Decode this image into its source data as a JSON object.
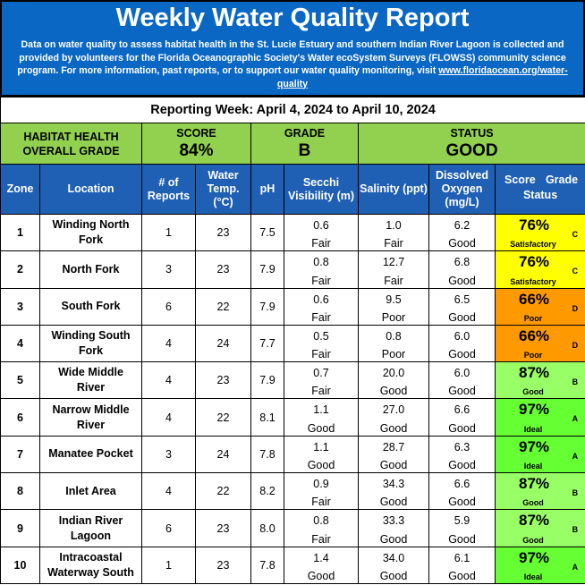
{
  "header": {
    "title": "Weekly Water Quality Report",
    "description": "Data on water quality to assess habitat health in the St. Lucie Estuary and southern Indian River Lagoon is collected and provided by volunteers for the Florida Oceanographic Society's Water ecoSystem Surveys (FLOWSS) community science program.  For more information, past reports, or to support our water quality monitoring, visit",
    "link": "www.floridaocean.org/water-quality",
    "bg_color": "#0a67c4"
  },
  "week": "Reporting Week: April 4, 2024 to April 10, 2024",
  "overall": {
    "label_line1": "HABITAT HEALTH",
    "label_line2": "OVERALL GRADE",
    "score_label": "SCORE",
    "score": "84%",
    "grade_label": "GRADE",
    "grade": "B",
    "status_label": "STATUS",
    "status": "GOOD",
    "bg_color": "#92d050"
  },
  "columns": {
    "zone": "Zone",
    "location": "Location",
    "reports": "# of Reports",
    "temp": "Water Temp. (°C)",
    "ph": "pH",
    "secchi": "Secchi Visibility (m)",
    "salinity": "Salinity (ppt)",
    "oxygen": "Dissolved Oxygen (mg/L)",
    "score": "Score",
    "grade": "Grade",
    "status": "Status",
    "header_color": "#1f5fb4"
  },
  "status_colors": {
    "Satisfactory": "#ffff00",
    "Poor": "#ff9900",
    "Good": "#99ff66",
    "Ideal": "#66ff33"
  },
  "rows": [
    {
      "zone": "1",
      "location": "Winding North Fork",
      "reports": "1",
      "temp": "23",
      "ph": "7.5",
      "secchi": "0.6",
      "secchi_rating": "Fair",
      "salinity": "1.0",
      "salinity_rating": "Fair",
      "oxygen": "6.2",
      "oxygen_rating": "Good",
      "score": "76%",
      "grade": "C",
      "status": "Satisfactory"
    },
    {
      "zone": "2",
      "location": "North Fork",
      "reports": "3",
      "temp": "23",
      "ph": "7.9",
      "secchi": "0.8",
      "secchi_rating": "Fair",
      "salinity": "12.7",
      "salinity_rating": "Fair",
      "oxygen": "6.8",
      "oxygen_rating": "Good",
      "score": "76%",
      "grade": "C",
      "status": "Satisfactory"
    },
    {
      "zone": "3",
      "location": "South Fork",
      "reports": "6",
      "temp": "22",
      "ph": "7.9",
      "secchi": "0.6",
      "secchi_rating": "Fair",
      "salinity": "9.5",
      "salinity_rating": "Poor",
      "oxygen": "6.5",
      "oxygen_rating": "Good",
      "score": "66%",
      "grade": "D",
      "status": "Poor"
    },
    {
      "zone": "4",
      "location": "Winding South Fork",
      "reports": "4",
      "temp": "24",
      "ph": "7.7",
      "secchi": "0.5",
      "secchi_rating": "Fair",
      "salinity": "0.8",
      "salinity_rating": "Poor",
      "oxygen": "6.0",
      "oxygen_rating": "Good",
      "score": "66%",
      "grade": "D",
      "status": "Poor"
    },
    {
      "zone": "5",
      "location": "Wide Middle River",
      "reports": "4",
      "temp": "23",
      "ph": "7.9",
      "secchi": "0.7",
      "secchi_rating": "Fair",
      "salinity": "20.0",
      "salinity_rating": "Good",
      "oxygen": "6.0",
      "oxygen_rating": "Good",
      "score": "87%",
      "grade": "B",
      "status": "Good"
    },
    {
      "zone": "6",
      "location": "Narrow Middle River",
      "reports": "4",
      "temp": "22",
      "ph": "8.1",
      "secchi": "1.1",
      "secchi_rating": "Good",
      "salinity": "27.0",
      "salinity_rating": "Good",
      "oxygen": "6.6",
      "oxygen_rating": "Good",
      "score": "97%",
      "grade": "A",
      "status": "Ideal"
    },
    {
      "zone": "7",
      "location": "Manatee Pocket",
      "reports": "3",
      "temp": "24",
      "ph": "7.8",
      "secchi": "1.1",
      "secchi_rating": "Good",
      "salinity": "28.7",
      "salinity_rating": "Good",
      "oxygen": "6.3",
      "oxygen_rating": "Good",
      "score": "97%",
      "grade": "A",
      "status": "Ideal"
    },
    {
      "zone": "8",
      "location": "Inlet Area",
      "reports": "4",
      "temp": "22",
      "ph": "8.2",
      "secchi": "0.9",
      "secchi_rating": "Fair",
      "salinity": "34.3",
      "salinity_rating": "Good",
      "oxygen": "6.6",
      "oxygen_rating": "Good",
      "score": "87%",
      "grade": "B",
      "status": "Good"
    },
    {
      "zone": "9",
      "location": "Indian River Lagoon",
      "reports": "6",
      "temp": "23",
      "ph": "8.0",
      "secchi": "0.8",
      "secchi_rating": "Fair",
      "salinity": "33.3",
      "salinity_rating": "Good",
      "oxygen": "5.9",
      "oxygen_rating": "Good",
      "score": "87%",
      "grade": "B",
      "status": "Good"
    },
    {
      "zone": "10",
      "location": "Intracoastal Waterway South",
      "reports": "1",
      "temp": "23",
      "ph": "7.8",
      "secchi": "1.4",
      "secchi_rating": "Good",
      "salinity": "34.0",
      "salinity_rating": "Good",
      "oxygen": "6.1",
      "oxygen_rating": "Good",
      "score": "97%",
      "grade": "A",
      "status": "Ideal"
    }
  ]
}
